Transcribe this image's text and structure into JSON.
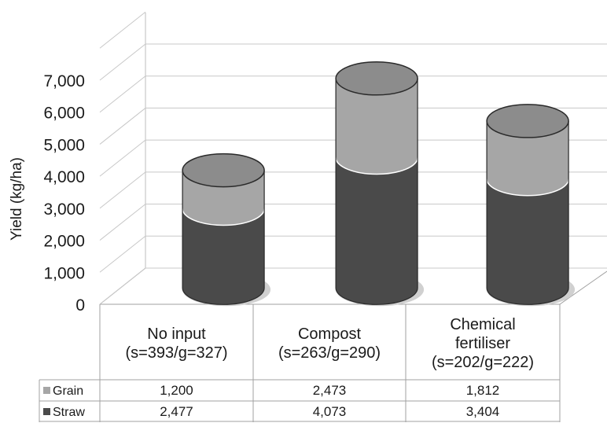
{
  "chart_data": {
    "type": "bar",
    "stacked": true,
    "style": "3d-cylinder",
    "title": "",
    "ylabel": "Yield (kg/ha)",
    "xlabel": "",
    "ylim": [
      0,
      7000
    ],
    "yticks": [
      "0",
      "1,000",
      "2,000",
      "3,000",
      "4,000",
      "5,000",
      "6,000",
      "7,000"
    ],
    "grid": true,
    "legend": "data-table",
    "categories": [
      {
        "lines": [
          "No input",
          "(s=393/g=327)"
        ]
      },
      {
        "lines": [
          "Compost",
          "(s=263/g=290)"
        ]
      },
      {
        "lines": [
          "Chemical",
          "fertiliser",
          "(s=202/g=222)"
        ]
      }
    ],
    "series": [
      {
        "name": "Grain",
        "color": "#a6a6a6",
        "values": [
          1200,
          2473,
          1812
        ],
        "labels": [
          "1,200",
          "2,473",
          "1,812"
        ]
      },
      {
        "name": "Straw",
        "color": "#4a4a4a",
        "values": [
          2477,
          4073,
          3404
        ],
        "labels": [
          "2,477",
          "4,073",
          "3,404"
        ]
      }
    ]
  }
}
